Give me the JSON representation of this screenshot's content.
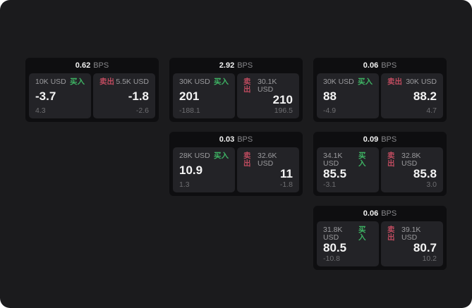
{
  "labels": {
    "bps_unit": "BPS",
    "buy": "买入",
    "sell": "卖出"
  },
  "colors": {
    "buy": "#3eb464",
    "sell": "#be4b5f",
    "app_bg": "#1b1b1d",
    "card_bg": "#0e0e10",
    "panel_bg": "#232327"
  },
  "cards": [
    {
      "bps": "0.62",
      "buy": {
        "amount": "10K USD",
        "value": "-3.7",
        "sub": "4.3"
      },
      "sell": {
        "amount": "5.5K USD",
        "value": "-1.8",
        "sub": "-2.6"
      }
    },
    {
      "bps": "2.92",
      "buy": {
        "amount": "30K USD",
        "value": "201",
        "sub": "-188.1"
      },
      "sell": {
        "amount": "30.1K USD",
        "value": "210",
        "sub": "196.5"
      }
    },
    {
      "bps": "0.06",
      "buy": {
        "amount": "30K USD",
        "value": "88",
        "sub": "-4.9"
      },
      "sell": {
        "amount": "30K USD",
        "value": "88.2",
        "sub": "4.7"
      }
    },
    {
      "bps": "0.03",
      "buy": {
        "amount": "28K USD",
        "value": "10.9",
        "sub": "1.3"
      },
      "sell": {
        "amount": "32.6K USD",
        "value": "11",
        "sub": "-1.8"
      }
    },
    {
      "bps": "0.09",
      "buy": {
        "amount": "34.1K USD",
        "value": "85.5",
        "sub": "-3.1"
      },
      "sell": {
        "amount": "32.8K USD",
        "value": "85.8",
        "sub": "3.0"
      }
    },
    {
      "bps": "0.06",
      "buy": {
        "amount": "31.8K USD",
        "value": "80.5",
        "sub": "-10.8"
      },
      "sell": {
        "amount": "39.1K USD",
        "value": "80.7",
        "sub": "10.2"
      }
    }
  ]
}
